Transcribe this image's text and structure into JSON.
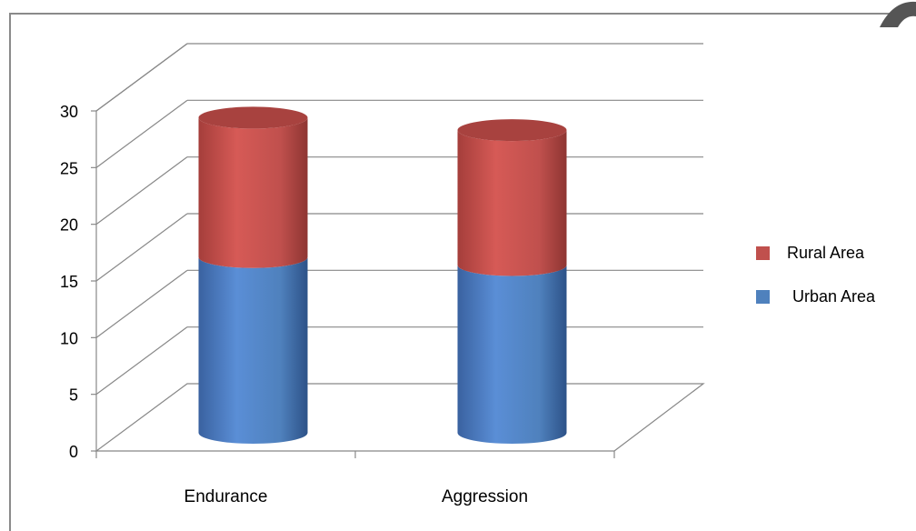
{
  "chart_data": {
    "type": "bar",
    "stacked": true,
    "style": "3d-cylinder",
    "title": "",
    "xlabel": "",
    "ylabel": "",
    "categories": [
      "Endurance",
      "Aggression"
    ],
    "series": [
      {
        "name": "Urban Area",
        "values": [
          15.5,
          14.8
        ],
        "color": "#4f81bd"
      },
      {
        "name": "Rural Area",
        "values": [
          12.3,
          11.9
        ],
        "color": "#c0504d"
      }
    ],
    "ylim": [
      0,
      30
    ],
    "yticks": [
      "0",
      "5",
      "10",
      "15",
      "20",
      "25",
      "30"
    ],
    "grid": true,
    "legend_position": "right"
  }
}
